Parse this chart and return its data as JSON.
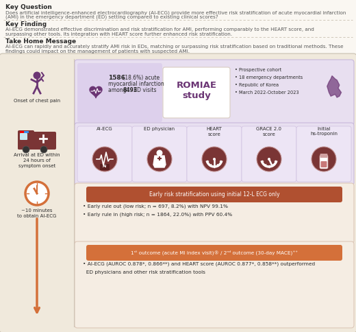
{
  "bg_color": "#faf7f2",
  "main_box_bg": "#f0e9dc",
  "purple": "#6b3574",
  "dark_maroon": "#7a3535",
  "orange": "#d4703a",
  "light_lavender": "#e8dff0",
  "light_peach": "#f5ede3",
  "white": "#ffffff",
  "dark_text": "#2a2a2a",
  "gray_text": "#5a5a5a",
  "separator_color": "#c8c0b0",
  "key_question_title": "Key Question",
  "key_question_text1": "Does artificial intelligence-enhanced electrocardiography (AI-ECG) provide more effective risk stratification of acute myocardial infarction",
  "key_question_text2": "(AMI) in the emergency department (ED) setting compared to existing clinical scores?",
  "key_finding_title": "Key Finding",
  "key_finding_text1": "AI-ECG demonstrated effective discrimination and risk stratification for AMI, performing comparably to the HEART score, and",
  "key_finding_text2": "surpassing other tools. Its integration with HEART score further enhanced risk stratification.",
  "take_home_title": "Take Home Message",
  "take_home_text1": "AI-ECG can rapidly and accurately stratify AMI risk in EDs, matching or surpassing risk stratification based on traditional methods. These",
  "take_home_text2": "findings could impact on the management of patients with suspected AMI.",
  "study_stat_bold": "1586",
  "study_stat_normal": " (18.6%) acute",
  "study_stat_line2": "myocardial infarction",
  "study_stat_line3": "among ",
  "study_stat_bold2": "8493",
  "study_stat_line3b": " ED visits",
  "study_name_line1": "ROMIAE",
  "study_name_line2": "study",
  "study_bullets": [
    "Prospective cohort",
    "18 emergency departments",
    "Republic of Korea",
    "March 2022-October 2023"
  ],
  "tool_labels": [
    "AI-ECG",
    "ED physician",
    "HEART\nscore",
    "GRACE 2.0\nscore",
    "Initial\nhs-troponin"
  ],
  "early_risk_title": "Early risk stratification using initial 12-L ECG only",
  "early_risk_b1": "• Early rule out (low risk; n = 697, 8.2%) with NPV 99.1%",
  "early_risk_b2": "• Early rule in (high risk; n = 1864, 22.0%) with PPV 60.4%",
  "outcome_title": "1ˢᵗ outcome (acute MI index visit)® / 2ⁿᵈ outcome (30-day MACE)⁺⁺",
  "outcome_b1": "• AI-ECG (AUROC 0.878*, 0.866**) and HEART score (AUROC 0.877*, 0.858**) outperformed",
  "outcome_b2": "  ED physicians and other risk stratification tools",
  "label_chest": "Onset of chest pain",
  "label_arrival": "Arrival at ED within\n24 hours of\nsymptom onset",
  "label_clock": "~10 minutes\nto obtain AI-ECG"
}
